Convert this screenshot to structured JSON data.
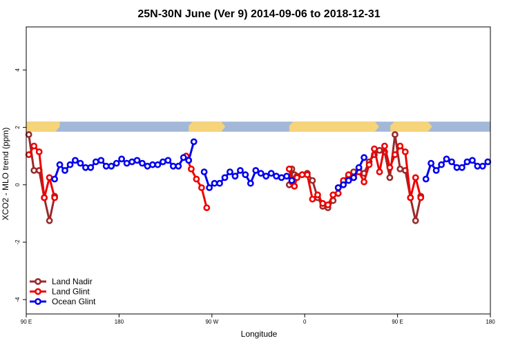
{
  "chart_data": {
    "type": "line",
    "title": "25N-30N June (Ver 9)   2014-09-06 to 2018-12-31",
    "xlabel": "Longitude",
    "ylabel": "XCO2 - MLO trend (ppm)",
    "xlim": [
      0,
      450
    ],
    "ylim": [
      -4.5,
      5.5
    ],
    "x_ticks": [
      {
        "value": 0,
        "label": "90 E"
      },
      {
        "value": 90,
        "label": "180"
      },
      {
        "value": 180,
        "label": "90 W"
      },
      {
        "value": 270,
        "label": "0"
      },
      {
        "value": 360,
        "label": "90 E"
      },
      {
        "value": 450,
        "label": "180"
      }
    ],
    "y_ticks": [
      {
        "value": -4,
        "label": "-4"
      },
      {
        "value": -2,
        "label": "-2"
      },
      {
        "value": 0,
        "label": "0"
      },
      {
        "value": 2,
        "label": "2"
      },
      {
        "value": 4,
        "label": "4"
      }
    ],
    "map_strip": {
      "ymin": 1.85,
      "ymax": 2.2,
      "ocean_color": "#a3b8d8",
      "land_color": "#f5d47a",
      "land_segments": [
        [
          0,
          32.5
        ],
        [
          157.5,
          193
        ],
        [
          255,
          342
        ],
        [
          353,
          393.5
        ]
      ]
    },
    "legend_position": "bottom-left",
    "series": [
      {
        "name": "Land Nadir",
        "color": "#9a2a2a",
        "segments": [
          [
            [
              2.5,
              1.75
            ],
            [
              7.5,
              0.5
            ],
            [
              12.5,
              0.5
            ],
            [
              17.5,
              -0.45
            ],
            [
              22.5,
              -1.25
            ],
            [
              27.5,
              -0.4
            ]
          ],
          [
            [
              255,
              0.0
            ],
            [
              257.5,
              0.55
            ],
            [
              260,
              0.35
            ],
            [
              262.5,
              0.3
            ],
            [
              267.5,
              0.35
            ],
            [
              272.5,
              0.4
            ],
            [
              277.5,
              0.15
            ],
            [
              282.5,
              -0.45
            ],
            [
              287.5,
              -0.75
            ],
            [
              292.5,
              -0.8
            ],
            [
              297.5,
              -0.55
            ],
            [
              302.5,
              -0.1
            ],
            [
              307.5,
              0.1
            ],
            [
              312.5,
              0.3
            ],
            [
              317.5,
              0.45
            ],
            [
              322.5,
              0.55
            ],
            [
              327.5,
              0.4
            ],
            [
              332.5,
              0.8
            ],
            [
              337.5,
              1.05
            ],
            [
              342.5,
              1.2
            ],
            [
              347.5,
              1.15
            ],
            [
              352.5,
              0.25
            ],
            [
              357.5,
              1.75
            ],
            [
              362.5,
              0.55
            ],
            [
              367.5,
              0.5
            ],
            [
              372.5,
              -0.45
            ],
            [
              377.5,
              -1.25
            ],
            [
              382.5,
              -0.4
            ]
          ]
        ]
      },
      {
        "name": "Land Glint",
        "color": "#ee0000",
        "segments": [
          [
            [
              2.5,
              1.05
            ],
            [
              7.5,
              1.35
            ],
            [
              12.5,
              1.15
            ],
            [
              17.5,
              -0.45
            ],
            [
              22.5,
              0.25
            ],
            [
              27.5,
              -0.45
            ]
          ],
          [
            [
              155,
              1.0
            ],
            [
              160,
              0.55
            ],
            [
              165,
              0.2
            ],
            [
              170,
              -0.1
            ],
            [
              175,
              -0.8
            ]
          ],
          [
            [
              255,
              0.55
            ],
            [
              257.5,
              0.1
            ],
            [
              260,
              -0.05
            ],
            [
              262.5,
              0.25
            ],
            [
              267.5,
              0.35
            ],
            [
              272.5,
              0.35
            ],
            [
              277.5,
              -0.5
            ],
            [
              282.5,
              -0.35
            ],
            [
              287.5,
              -0.65
            ],
            [
              292.5,
              -0.7
            ],
            [
              297.5,
              -0.35
            ],
            [
              302.5,
              -0.3
            ],
            [
              307.5,
              0.15
            ],
            [
              312.5,
              0.35
            ],
            [
              317.5,
              0.25
            ],
            [
              322.5,
              0.45
            ],
            [
              327.5,
              0.1
            ],
            [
              332.5,
              0.7
            ],
            [
              337.5,
              1.25
            ],
            [
              342.5,
              0.45
            ],
            [
              347.5,
              1.35
            ],
            [
              352.5,
              0.6
            ],
            [
              357.5,
              1.05
            ],
            [
              362.5,
              1.35
            ],
            [
              367.5,
              1.15
            ],
            [
              372.5,
              -0.45
            ],
            [
              377.5,
              0.25
            ],
            [
              382.5,
              -0.45
            ]
          ]
        ]
      },
      {
        "name": "Ocean Glint",
        "color": "#0000ee",
        "segments": [
          [
            [
              27.5,
              0.2
            ],
            [
              32.5,
              0.7
            ],
            [
              37.5,
              0.5
            ],
            [
              42.5,
              0.7
            ],
            [
              47.5,
              0.85
            ],
            [
              52.5,
              0.75
            ],
            [
              57.5,
              0.6
            ],
            [
              62.5,
              0.6
            ],
            [
              67.5,
              0.8
            ],
            [
              72.5,
              0.85
            ],
            [
              77.5,
              0.65
            ],
            [
              82.5,
              0.65
            ],
            [
              87.5,
              0.75
            ],
            [
              92.5,
              0.9
            ],
            [
              97.5,
              0.75
            ],
            [
              102.5,
              0.8
            ],
            [
              107.5,
              0.85
            ],
            [
              112.5,
              0.75
            ],
            [
              117.5,
              0.65
            ],
            [
              122.5,
              0.7
            ],
            [
              127.5,
              0.7
            ],
            [
              132.5,
              0.8
            ],
            [
              137.5,
              0.85
            ],
            [
              142.5,
              0.65
            ],
            [
              147.5,
              0.65
            ],
            [
              152.5,
              0.95
            ],
            [
              157.5,
              0.85
            ],
            [
              162.5,
              1.5
            ]
          ],
          [
            [
              172.5,
              0.45
            ],
            [
              177.5,
              -0.1
            ],
            [
              182.5,
              0.05
            ],
            [
              187.5,
              0.05
            ],
            [
              192.5,
              0.25
            ],
            [
              197.5,
              0.45
            ],
            [
              202.5,
              0.3
            ],
            [
              207.5,
              0.5
            ],
            [
              212.5,
              0.35
            ],
            [
              217.5,
              0.05
            ],
            [
              222.5,
              0.5
            ],
            [
              227.5,
              0.4
            ],
            [
              232.5,
              0.3
            ],
            [
              237.5,
              0.4
            ],
            [
              242.5,
              0.3
            ],
            [
              247.5,
              0.25
            ],
            [
              252.5,
              0.3
            ],
            [
              257.5,
              0.15
            ]
          ],
          [
            [
              302.5,
              -0.1
            ],
            [
              307.5,
              0.0
            ],
            [
              312.5,
              0.15
            ],
            [
              317.5,
              0.25
            ],
            [
              322.5,
              0.6
            ],
            [
              327.5,
              0.95
            ]
          ],
          [
            [
              387.5,
              0.2
            ],
            [
              392.5,
              0.75
            ],
            [
              397.5,
              0.5
            ],
            [
              402.5,
              0.7
            ],
            [
              407.5,
              0.9
            ],
            [
              412.5,
              0.8
            ],
            [
              417.5,
              0.6
            ],
            [
              422.5,
              0.6
            ],
            [
              427.5,
              0.8
            ],
            [
              432.5,
              0.85
            ],
            [
              437.5,
              0.65
            ],
            [
              442.5,
              0.65
            ],
            [
              447.5,
              0.8
            ]
          ]
        ]
      }
    ]
  }
}
